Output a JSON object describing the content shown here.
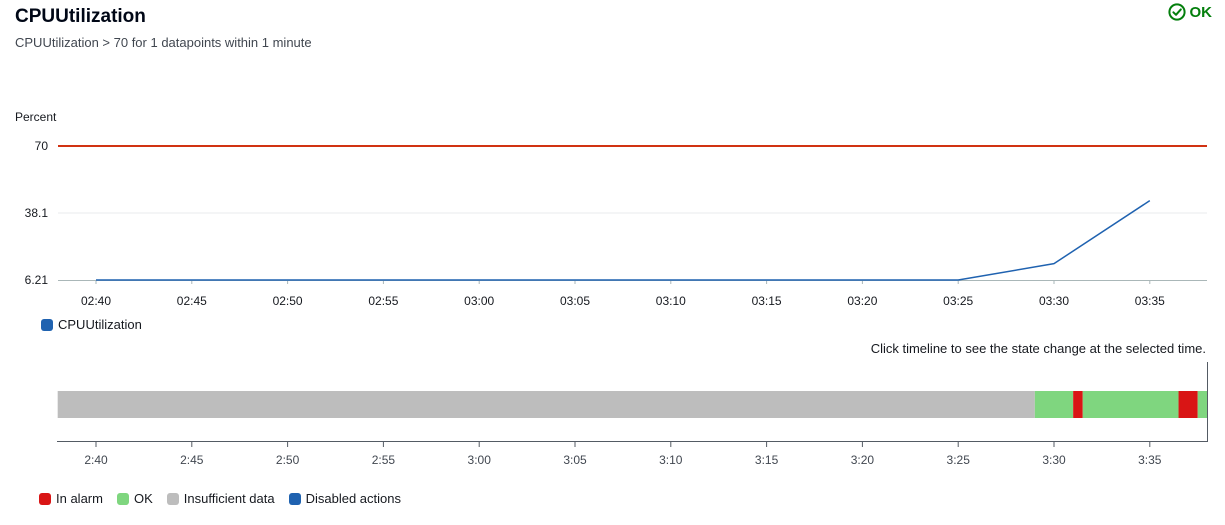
{
  "header": {
    "title": "CPUUtilization",
    "subtitle": "CPUUtilization > 70 for 1 datapoints within 1 minute",
    "status_label": "OK",
    "status_color": "#037f0c",
    "status_icon": "check-circle-icon"
  },
  "chart_data": [
    {
      "type": "line",
      "ylabel": "Percent",
      "yticks": [
        "70",
        "38.1",
        "6.21"
      ],
      "ylim": [
        6.21,
        70
      ],
      "threshold": {
        "value": 70,
        "color": "#d13212"
      },
      "x_ticks": [
        "02:40",
        "02:45",
        "02:50",
        "02:55",
        "03:00",
        "03:05",
        "03:10",
        "03:15",
        "03:20",
        "03:25",
        "03:30",
        "03:35"
      ],
      "series": [
        {
          "name": "CPUUtilization",
          "color": "#1f62b0",
          "points": [
            {
              "x": "02:40",
              "y": 6.21
            },
            {
              "x": "02:45",
              "y": 6.21
            },
            {
              "x": "02:50",
              "y": 6.21
            },
            {
              "x": "02:55",
              "y": 6.21
            },
            {
              "x": "03:00",
              "y": 6.21
            },
            {
              "x": "03:05",
              "y": 6.21
            },
            {
              "x": "03:10",
              "y": 6.21
            },
            {
              "x": "03:15",
              "y": 6.21
            },
            {
              "x": "03:20",
              "y": 6.21
            },
            {
              "x": "03:25",
              "y": 6.21
            },
            {
              "x": "03:30",
              "y": 14
            },
            {
              "x": "03:35",
              "y": 44
            }
          ]
        }
      ],
      "grid": true
    },
    {
      "type": "timeline",
      "hint": "Click timeline to see the state change at the selected time.",
      "x_ticks": [
        "2:40",
        "2:45",
        "2:50",
        "2:55",
        "3:00",
        "3:05",
        "3:10",
        "3:15",
        "3:20",
        "3:25",
        "3:30",
        "3:35"
      ],
      "x_range": [
        "2:38",
        "3:38"
      ],
      "segments": [
        {
          "state": "Insufficient data",
          "start": "2:38",
          "end": "3:29"
        },
        {
          "state": "OK",
          "start": "3:29",
          "end": "3:31"
        },
        {
          "state": "In alarm",
          "start": "3:31",
          "end": "3:31:30"
        },
        {
          "state": "OK",
          "start": "3:31:30",
          "end": "3:36:30"
        },
        {
          "state": "In alarm",
          "start": "3:36:30",
          "end": "3:37:30"
        },
        {
          "state": "OK",
          "start": "3:37:30",
          "end": "3:38"
        }
      ],
      "states": [
        {
          "name": "In alarm",
          "color": "#d91515"
        },
        {
          "name": "OK",
          "color": "#7fd67f"
        },
        {
          "name": "Insufficient data",
          "color": "#bdbdbd"
        },
        {
          "name": "Disabled actions",
          "color": "#1f62b0"
        }
      ]
    }
  ]
}
